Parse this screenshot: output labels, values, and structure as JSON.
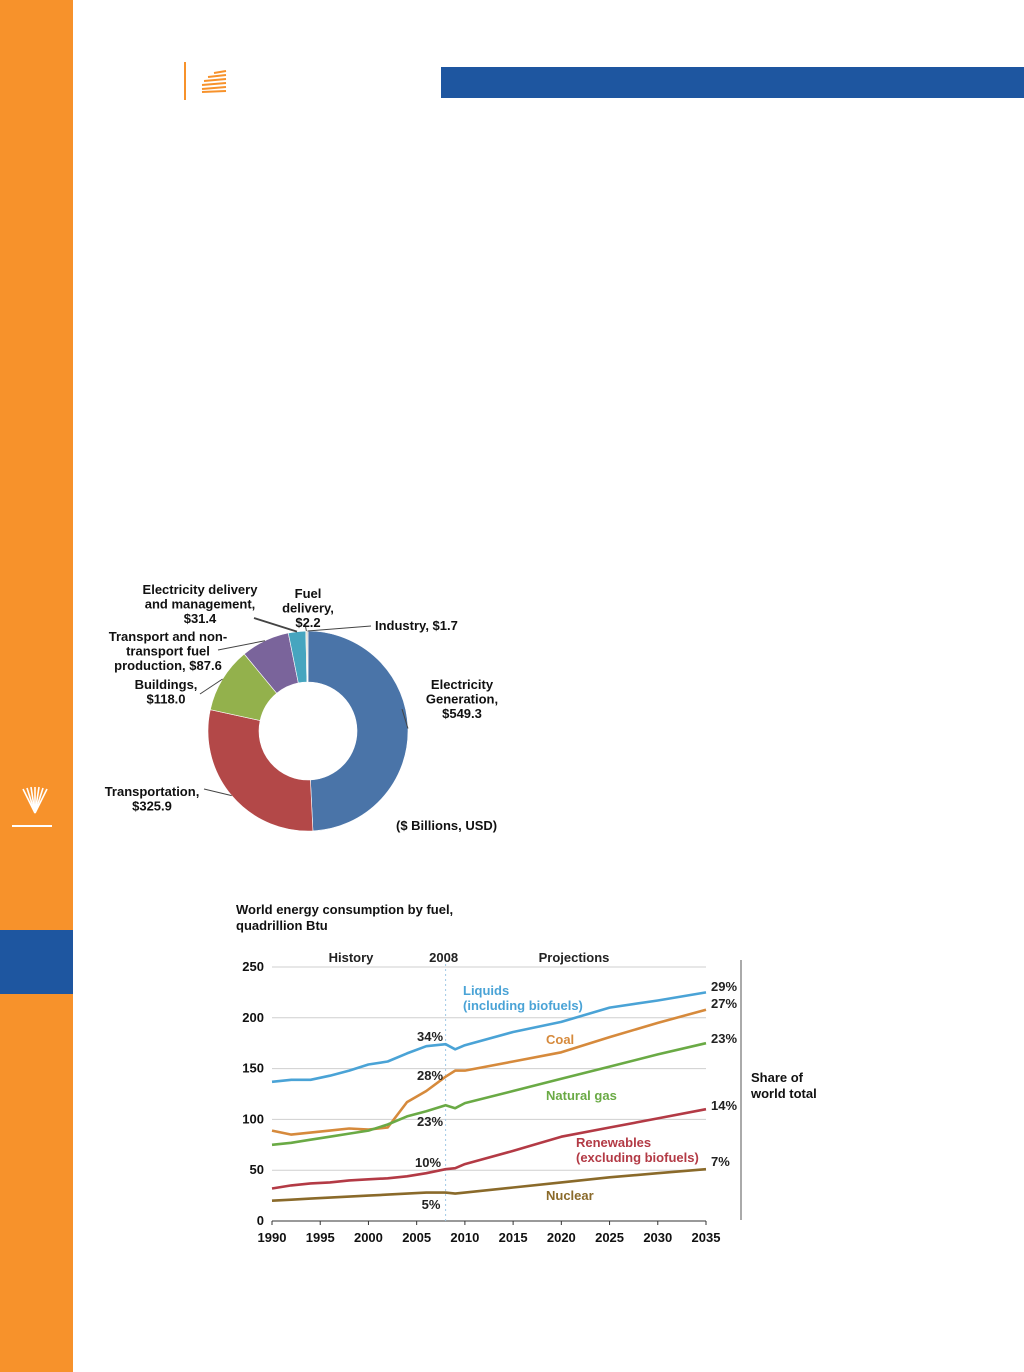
{
  "page": {
    "decor": {
      "orange": "#f7922b",
      "blue": "#1e56a0",
      "sun_icon": "sunburst-icon"
    }
  },
  "chart_data": [
    {
      "type": "pie",
      "variant": "donut",
      "units_label": "($ Billions, USD)",
      "slices": [
        {
          "label_lines": [
            "Electricity",
            "Generation,",
            "$549.3"
          ],
          "name": "Electricity Generation",
          "value": 549.3,
          "color": "#4a74a8"
        },
        {
          "label_lines": [
            "Transportation,",
            "$325.9"
          ],
          "name": "Transportation",
          "value": 325.9,
          "color": "#b34848"
        },
        {
          "label_lines": [
            "Buildings,",
            "$118.0"
          ],
          "name": "Buildings",
          "value": 118.0,
          "color": "#93b14c"
        },
        {
          "label_lines": [
            "Transport and non-",
            "transport fuel",
            "production, $87.6"
          ],
          "name": "Transport and non-transport fuel production",
          "value": 87.6,
          "color": "#7a649b"
        },
        {
          "label_lines": [
            "Electricity delivery",
            "and management,",
            "$31.4"
          ],
          "name": "Electricity delivery and management",
          "value": 31.4,
          "color": "#46a5bf"
        },
        {
          "label_lines": [
            "Fuel",
            "delivery,",
            "$2.2"
          ],
          "name": "Fuel delivery",
          "value": 2.2,
          "color": "#d9d0b0"
        },
        {
          "label_lines": [
            "Industry, $1.7"
          ],
          "name": "Industry",
          "value": 1.7,
          "color": "#9a9a9a"
        }
      ]
    },
    {
      "type": "line",
      "title_lines": [
        "World energy consumption by fuel,",
        "quadrillion Btu"
      ],
      "xlim": [
        1990,
        2035
      ],
      "ylim": [
        0,
        250
      ],
      "x_ticks": [
        1990,
        1995,
        2000,
        2005,
        2010,
        2015,
        2020,
        2025,
        2030,
        2035
      ],
      "y_ticks": [
        0,
        50,
        100,
        150,
        200,
        250
      ],
      "grid": true,
      "divider_year": 2008,
      "header_labels": {
        "history": "History",
        "divider": "2008",
        "projections": "Projections"
      },
      "share_label_lines": [
        "Share of",
        "world total"
      ],
      "x": [
        1990,
        1992,
        1994,
        1996,
        1998,
        2000,
        2002,
        2004,
        2006,
        2008,
        2009,
        2010,
        2015,
        2020,
        2025,
        2030,
        2035
      ],
      "series": [
        {
          "name": "Liquids (including biofuels)",
          "label_lines": [
            "Liquids",
            "(including biofuels)"
          ],
          "color": "#4aa3d6",
          "values": [
            137,
            139,
            139,
            143,
            148,
            154,
            157,
            165,
            172,
            174,
            169,
            173,
            186,
            196,
            210,
            217,
            225
          ],
          "share_2008": "34%",
          "share_2035": "29%"
        },
        {
          "name": "Coal",
          "label_lines": [
            "Coal"
          ],
          "color": "#d68a3c",
          "values": [
            89,
            85,
            87,
            89,
            91,
            90,
            92,
            117,
            128,
            142,
            148,
            148,
            157,
            166,
            181,
            195,
            208
          ],
          "share_2008": "28%",
          "share_2035": "27%"
        },
        {
          "name": "Natural gas",
          "label_lines": [
            "Natural gas"
          ],
          "color": "#6aaa45",
          "values": [
            75,
            77,
            80,
            83,
            86,
            89,
            95,
            103,
            108,
            114,
            111,
            116,
            128,
            140,
            152,
            164,
            175
          ],
          "share_2008": "23%",
          "share_2035": "23%"
        },
        {
          "name": "Renewables (excluding biofuels)",
          "label_lines": [
            "Renewables",
            "(excluding biofuels)"
          ],
          "color": "#b33a45",
          "values": [
            32,
            35,
            37,
            38,
            40,
            41,
            42,
            44,
            47,
            51,
            52,
            56,
            69,
            83,
            92,
            101,
            110
          ],
          "share_2008": "10%",
          "share_2035": "14%"
        },
        {
          "name": "Nuclear",
          "label_lines": [
            "Nuclear"
          ],
          "color": "#8a6a2a",
          "values": [
            20,
            21,
            22,
            23,
            24,
            25,
            26,
            27,
            28,
            28,
            27,
            28,
            33,
            38,
            43,
            47,
            51
          ],
          "share_2008": "5%",
          "share_2035": "7%"
        }
      ]
    }
  ]
}
